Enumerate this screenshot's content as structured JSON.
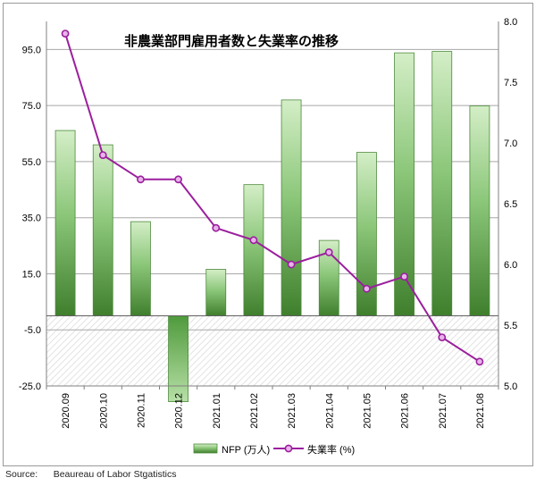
{
  "chart_data": {
    "type": "bar+line",
    "title": "非農業部門雇用者数と失業率の推移",
    "categories": [
      "2020.09",
      "2020.10",
      "2020.11",
      "2020.12",
      "2021.01",
      "2021.02",
      "2021.03",
      "2021.04",
      "2021.05",
      "2021.06",
      "2021.07",
      "2021.08"
    ],
    "series": [
      {
        "name": "NFP (万人)",
        "type": "bar",
        "axis": "left",
        "color": "#5fa64a",
        "values": [
          66.1,
          61.0,
          33.6,
          -30.6,
          16.6,
          46.8,
          77.0,
          26.9,
          58.3,
          93.8,
          94.3,
          74.9
        ]
      },
      {
        "name": "失業率 (%)",
        "type": "line",
        "axis": "right",
        "color": "#9b1f9e",
        "values": [
          7.9,
          6.9,
          6.7,
          6.7,
          6.3,
          6.2,
          6.0,
          6.1,
          5.8,
          5.9,
          5.4,
          5.2
        ]
      }
    ],
    "y_left": {
      "ticks": [
        "95.0",
        "75.0",
        "55.0",
        "35.0",
        "15.0",
        "-5.0",
        "-25.0"
      ],
      "lim": [
        -25,
        105
      ]
    },
    "y_right": {
      "ticks": [
        "8.0",
        "7.5",
        "7.0",
        "6.5",
        "6.0",
        "5.5",
        "5.0"
      ],
      "lim": [
        5.0,
        8.0
      ]
    },
    "grid": true,
    "legend_position": "bottom",
    "source": "Source:      Beaureau of Labor Stgatistics"
  }
}
